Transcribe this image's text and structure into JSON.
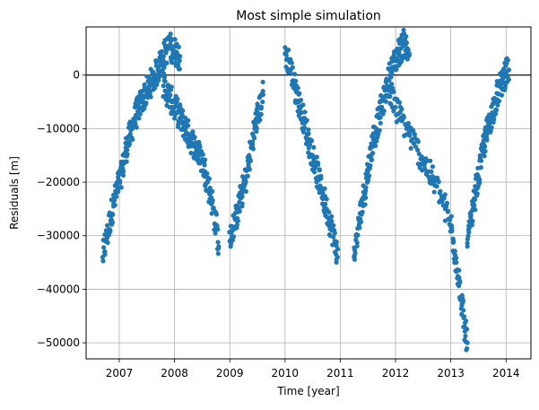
{
  "chart_data": {
    "type": "scatter",
    "title": "Most simple simulation",
    "xlabel": "Time [year]",
    "ylabel": "Residuals [m]",
    "xlim": [
      2006.4,
      2014.45
    ],
    "ylim": [
      -53000,
      9000
    ],
    "x_ticks": [
      2007,
      2008,
      2009,
      2010,
      2011,
      2012,
      2013,
      2014
    ],
    "x_tick_labels": [
      "2007",
      "2008",
      "2009",
      "2010",
      "2011",
      "2012",
      "2013",
      "2014"
    ],
    "y_ticks": [
      -50000,
      -40000,
      -30000,
      -20000,
      -10000,
      0
    ],
    "y_tick_labels": [
      "−50000",
      "−40000",
      "−30000",
      "−20000",
      "−10000",
      "0"
    ],
    "grid": true,
    "reference_line_y": 0,
    "colors": {
      "marker": "#1f77b4",
      "grid": "#b0b0b0",
      "axes": "#000000",
      "reference_line": "#000000"
    },
    "series": [
      {
        "segments": [
          {
            "x": [
              2006.7,
              2006.75,
              2006.8,
              2006.85,
              2006.9,
              2006.95,
              2007.0,
              2007.05,
              2007.1,
              2007.15,
              2007.2,
              2007.25,
              2007.3,
              2007.35,
              2007.4,
              2007.45,
              2007.5,
              2007.55,
              2007.6,
              2007.65,
              2007.7,
              2007.75,
              2007.8,
              2007.85,
              2007.9,
              2007.95,
              2008.0,
              2008.05,
              2008.1
            ],
            "y": [
              -34000,
              -31000,
              -29000,
              -26000,
              -24000,
              -22000,
              -20000,
              -18000,
              -15000,
              -13000,
              -11000,
              -9000,
              -7500,
              -6000,
              -5000,
              -4000,
              -3000,
              -2000,
              -1000,
              0,
              1000,
              2500,
              3500,
              4500,
              5500,
              5000,
              4500,
              4000,
              3500
            ]
          },
          {
            "x": [
              2007.8,
              2007.85,
              2007.9,
              2007.95,
              2008.0,
              2008.05,
              2008.1,
              2008.15,
              2008.2,
              2008.25,
              2008.3,
              2008.35,
              2008.4,
              2008.45,
              2008.5,
              2008.55,
              2008.6,
              2008.65,
              2008.7,
              2008.75,
              2008.8
            ],
            "y": [
              -2000,
              -3000,
              -4000,
              -5000,
              -6000,
              -7000,
              -8000,
              -9000,
              -10000,
              -11000,
              -12000,
              -13000,
              -14000,
              -15000,
              -16000,
              -18000,
              -20000,
              -22000,
              -25000,
              -28000,
              -32000
            ]
          },
          {
            "x": [
              2009.0,
              2009.05,
              2009.1,
              2009.15,
              2009.2,
              2009.25,
              2009.3,
              2009.35,
              2009.4,
              2009.45,
              2009.5,
              2009.55,
              2009.6
            ],
            "y": [
              -31000,
              -29000,
              -27000,
              -25000,
              -23000,
              -21000,
              -19000,
              -16000,
              -13000,
              -10000,
              -8000,
              -6000,
              -3000
            ]
          },
          {
            "x": [
              2010.0,
              2010.05,
              2010.1,
              2010.15,
              2010.2,
              2010.25,
              2010.3,
              2010.35,
              2010.4,
              2010.45,
              2010.5,
              2010.55,
              2010.6,
              2010.65,
              2010.7,
              2010.75,
              2010.8,
              2010.85,
              2010.9,
              2010.95
            ],
            "y": [
              4000,
              3000,
              1000,
              -1000,
              -3000,
              -5000,
              -7000,
              -9000,
              -11000,
              -13000,
              -15000,
              -17000,
              -19000,
              -21000,
              -23000,
              -25000,
              -27000,
              -29000,
              -31000,
              -34000
            ]
          },
          {
            "x": [
              2011.25,
              2011.3,
              2011.35,
              2011.4,
              2011.45,
              2011.5,
              2011.55,
              2011.6,
              2011.65,
              2011.7,
              2011.75,
              2011.8,
              2011.85,
              2011.9,
              2011.95,
              2012.0,
              2012.05,
              2012.1,
              2012.15,
              2012.2,
              2012.25
            ],
            "y": [
              -34000,
              -30000,
              -27000,
              -24000,
              -21000,
              -18000,
              -15000,
              -12000,
              -10000,
              -8000,
              -6000,
              -4000,
              -2000,
              0,
              1500,
              3000,
              4000,
              5000,
              6000,
              5000,
              4000
            ]
          },
          {
            "x": [
              2011.9,
              2012.0,
              2012.1,
              2012.2,
              2012.3,
              2012.4,
              2012.5,
              2012.6,
              2012.7,
              2012.8,
              2012.9,
              2013.0,
              2013.05,
              2013.1,
              2013.15,
              2013.2,
              2013.25,
              2013.3
            ],
            "y": [
              -4000,
              -6000,
              -8000,
              -10000,
              -12000,
              -14000,
              -16000,
              -18000,
              -20000,
              -22000,
              -25000,
              -28000,
              -31000,
              -35000,
              -39000,
              -43000,
              -47000,
              -50000
            ]
          },
          {
            "x": [
              2013.3,
              2013.35,
              2013.4,
              2013.45,
              2013.5,
              2013.55,
              2013.6,
              2013.65,
              2013.7,
              2013.75,
              2013.8,
              2013.85,
              2013.9,
              2013.95,
              2014.0,
              2014.05
            ],
            "y": [
              -32000,
              -28000,
              -25000,
              -22000,
              -19000,
              -16000,
              -13000,
              -11000,
              -9000,
              -7000,
              -5000,
              -3500,
              -2000,
              -500,
              500,
              1000
            ]
          }
        ]
      }
    ]
  }
}
